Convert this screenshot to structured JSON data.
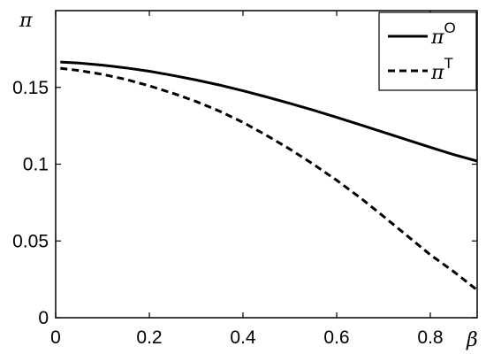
{
  "chart_data": {
    "type": "line",
    "xlabel": "β",
    "ylabel": "π",
    "xlim": [
      0,
      0.9
    ],
    "ylim": [
      0,
      0.2
    ],
    "xticks": [
      0,
      0.2,
      0.4,
      0.6,
      0.8
    ],
    "xtick_labels": [
      "0",
      "0.2",
      "0.4",
      "0.6",
      "0.8"
    ],
    "yticks": [
      0,
      0.05,
      0.1,
      0.15
    ],
    "ytick_labels": [
      "0",
      "0.05",
      "0.1",
      "0.15"
    ],
    "grid": false,
    "legend_position": "top-right",
    "series": [
      {
        "legend_base": "π",
        "legend_sup": "O",
        "style": "solid",
        "color": "#000000",
        "x": [
          0.01,
          0.05,
          0.1,
          0.15,
          0.2,
          0.25,
          0.3,
          0.35,
          0.4,
          0.45,
          0.5,
          0.55,
          0.6,
          0.65,
          0.7,
          0.75,
          0.8,
          0.85,
          0.9
        ],
        "y": [
          0.1665,
          0.1659,
          0.1645,
          0.1627,
          0.1605,
          0.1578,
          0.1548,
          0.1515,
          0.1478,
          0.1438,
          0.1396,
          0.1352,
          0.1305,
          0.1257,
          0.1208,
          0.1159,
          0.111,
          0.1062,
          0.102
        ]
      },
      {
        "legend_base": "π",
        "legend_sup": "T",
        "style": "dashed",
        "color": "#000000",
        "x": [
          0.01,
          0.05,
          0.1,
          0.15,
          0.2,
          0.25,
          0.3,
          0.35,
          0.4,
          0.45,
          0.5,
          0.55,
          0.6,
          0.65,
          0.7,
          0.75,
          0.8,
          0.85,
          0.9
        ],
        "y": [
          0.1625,
          0.161,
          0.1585,
          0.1552,
          0.151,
          0.1462,
          0.1408,
          0.1345,
          0.1272,
          0.1188,
          0.1098,
          0.1,
          0.0895,
          0.0782,
          0.066,
          0.0535,
          0.041,
          0.03,
          0.018
        ]
      }
    ]
  }
}
